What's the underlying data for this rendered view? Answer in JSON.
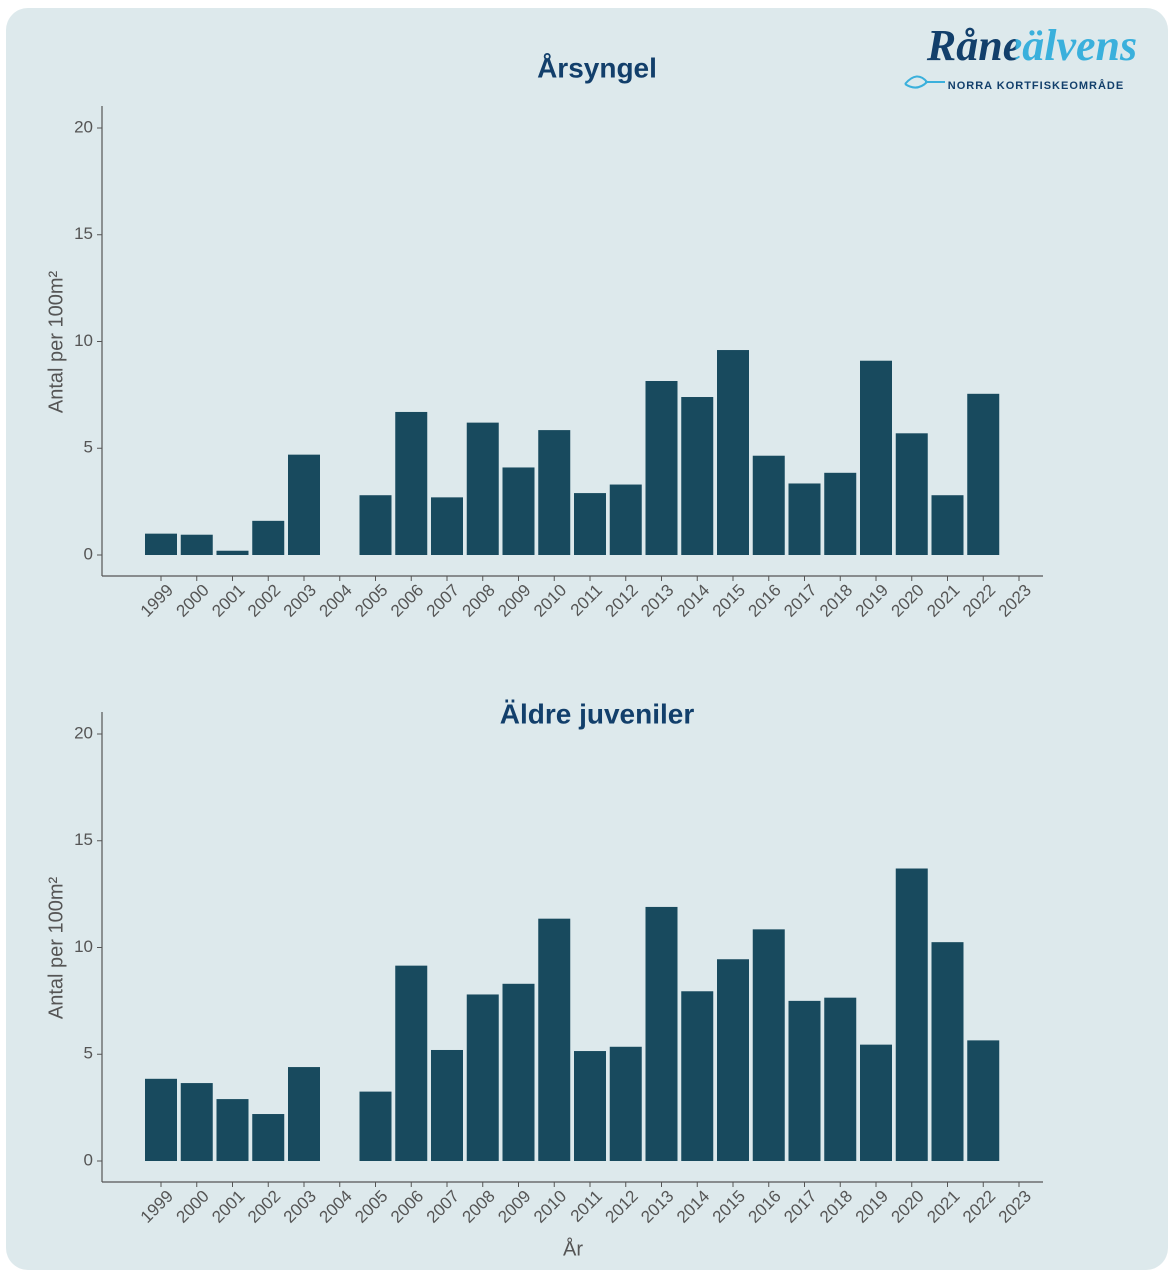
{
  "logo": {
    "name": "Råneälvens",
    "subtitle": "NORRA KORTFISKEOMRÅDE"
  },
  "chart_data": [
    {
      "type": "bar",
      "title": "Årsyngel",
      "y_label": "Antal per 100m²",
      "color": "#184a5e",
      "grid": false,
      "categories": [
        "1999",
        "2000",
        "2001",
        "2002",
        "2003",
        "2004",
        "2005",
        "2006",
        "2007",
        "2008",
        "2009",
        "2010",
        "2011",
        "2012",
        "2013",
        "2014",
        "2015",
        "2016",
        "2017",
        "2018",
        "2019",
        "2020",
        "2021",
        "2022",
        "2023"
      ],
      "values": [
        1.0,
        0.95,
        0.2,
        1.6,
        4.7,
        null,
        2.8,
        6.7,
        2.7,
        6.2,
        4.1,
        5.85,
        2.9,
        3.3,
        8.15,
        7.4,
        9.6,
        4.65,
        3.35,
        3.85,
        9.1,
        5.7,
        2.8,
        7.55,
        null
      ],
      "ylim": [
        0,
        20
      ],
      "yticks": [
        0,
        5,
        10,
        15,
        20
      ]
    },
    {
      "type": "bar",
      "title": "Äldre juveniler",
      "x_label": "År",
      "y_label": "Antal per 100m²",
      "color": "#184a5e",
      "grid": false,
      "categories": [
        "1999",
        "2000",
        "2001",
        "2002",
        "2003",
        "2004",
        "2005",
        "2006",
        "2007",
        "2008",
        "2009",
        "2010",
        "2011",
        "2012",
        "2013",
        "2014",
        "2015",
        "2016",
        "2017",
        "2018",
        "2019",
        "2020",
        "2021",
        "2022",
        "2023"
      ],
      "values": [
        3.85,
        3.65,
        2.9,
        2.2,
        4.4,
        null,
        3.25,
        9.15,
        5.2,
        7.8,
        8.3,
        11.35,
        5.15,
        5.35,
        11.9,
        7.95,
        9.45,
        10.85,
        7.5,
        7.65,
        5.45,
        13.7,
        10.25,
        5.65,
        null
      ],
      "ylim": [
        0,
        20
      ],
      "yticks": [
        0,
        5,
        10,
        15,
        20
      ]
    }
  ]
}
